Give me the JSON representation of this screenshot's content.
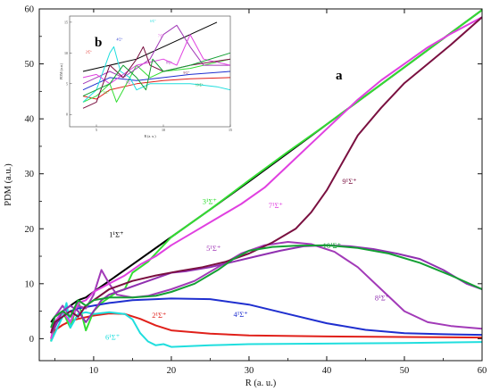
{
  "chart_data": [
    {
      "type": "line",
      "panel_label": "a",
      "xlabel": "R (a. u.)",
      "ylabel": "PDM (a.u.)",
      "xlim": [
        3,
        60
      ],
      "ylim": [
        -4,
        60
      ],
      "xticks": [
        10,
        20,
        30,
        40,
        50,
        60
      ],
      "yticks": [
        0,
        10,
        20,
        30,
        40,
        50,
        60
      ],
      "grid": false,
      "series": [
        {
          "name": "1¹Σ⁺",
          "color": "#000000",
          "label_at": [
            12,
            18.5
          ],
          "x": [
            4.5,
            5,
            6,
            7,
            8,
            9,
            10,
            12,
            15,
            20,
            25,
            30,
            35,
            40,
            45,
            50,
            55,
            60
          ],
          "y": [
            3,
            4,
            5,
            6,
            7,
            7.5,
            8.5,
            10.5,
            13.5,
            18.5,
            23.5,
            28.6,
            33.8,
            39,
            44.2,
            49.4,
            54.6,
            59.8
          ]
        },
        {
          "name": "2¹Σ⁺",
          "color": "#e0201a",
          "label_at": [
            17.5,
            3.8
          ],
          "x": [
            4.5,
            5,
            6,
            7,
            8,
            9,
            10,
            12,
            14,
            16,
            18,
            20,
            25,
            30,
            40,
            50,
            60
          ],
          "y": [
            0,
            1.5,
            2.5,
            3.2,
            3.6,
            3.9,
            4.2,
            4.6,
            4.5,
            3.6,
            2.4,
            1.5,
            0.9,
            0.6,
            0.4,
            0.3,
            0.2
          ]
        },
        {
          "name": "3¹Σ⁺",
          "color": "#33dd33",
          "label_at": [
            24,
            24.5
          ],
          "x": [
            4.5,
            5,
            6,
            7,
            8,
            9,
            10,
            11,
            12,
            13,
            14,
            15,
            17,
            20,
            25,
            30,
            35,
            40,
            45,
            50,
            55,
            60
          ],
          "y": [
            -0.5,
            3,
            5,
            2,
            7,
            1.5,
            5,
            6.5,
            7.5,
            8.5,
            9,
            12,
            14,
            18.5,
            23.5,
            28.8,
            34,
            39,
            44.2,
            49.4,
            54.6,
            59.8
          ]
        },
        {
          "name": "4¹Σ⁺",
          "color": "#1f2fcf",
          "label_at": [
            28,
            4
          ]
        },
        {
          "name": "5¹Σ⁺",
          "color": "#a23ab8",
          "label_at": [
            24.5,
            16
          ]
        },
        {
          "name": "6¹Σ⁺",
          "color": "#20dede",
          "label_at": [
            11.5,
            -0.2
          ]
        },
        {
          "name": "7¹Σ⁺",
          "color": "#e040e0",
          "label_at": [
            32.5,
            23.8
          ]
        },
        {
          "name": "8¹Σ⁺",
          "color": "#9030b0",
          "label_at": [
            46.2,
            7
          ]
        },
        {
          "name": "9¹Σ⁺",
          "color": "#7a1040",
          "label_at": [
            42,
            28.2
          ]
        },
        {
          "name": "10¹Σ⁺",
          "color": "#14a034",
          "label_at": [
            39.5,
            16.5
          ]
        }
      ]
    },
    {
      "type": "line",
      "panel_label": "b",
      "xlabel": "R (a. u.)",
      "ylabel": "PDM (a.u.)",
      "xlim": [
        3,
        15
      ],
      "ylim": [
        -2,
        16
      ],
      "xticks": [
        5,
        10,
        15
      ],
      "yticks": [
        0,
        5,
        10,
        15
      ],
      "grid": false
    }
  ]
}
